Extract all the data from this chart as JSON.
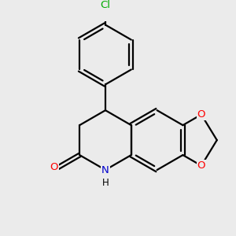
{
  "background_color": "#ebebeb",
  "bond_color": "#000000",
  "atom_colors": {
    "O": "#ff0000",
    "N": "#0000cd",
    "Cl": "#00aa00",
    "C": "#000000"
  },
  "bond_width": 1.6,
  "figsize": [
    3.0,
    3.0
  ],
  "dpi": 100
}
